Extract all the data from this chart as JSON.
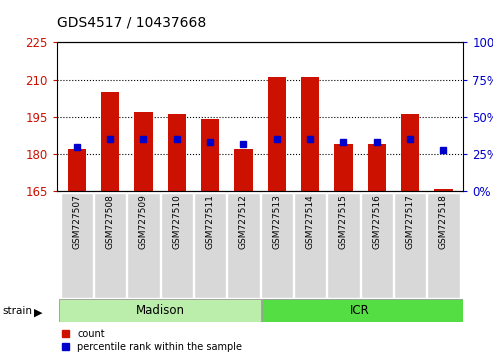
{
  "title": "GDS4517 / 10437668",
  "samples": [
    "GSM727507",
    "GSM727508",
    "GSM727509",
    "GSM727510",
    "GSM727511",
    "GSM727512",
    "GSM727513",
    "GSM727514",
    "GSM727515",
    "GSM727516",
    "GSM727517",
    "GSM727518"
  ],
  "red_tops": [
    182,
    205,
    197,
    196,
    194,
    182,
    211,
    211,
    184,
    184,
    196,
    166
  ],
  "blue_pct": [
    30,
    35,
    35,
    35,
    33,
    32,
    35,
    35,
    33,
    33,
    35,
    28
  ],
  "y_min": 165,
  "y_max": 225,
  "y_ticks_left": [
    165,
    180,
    195,
    210,
    225
  ],
  "y_ticks_right": [
    0,
    25,
    50,
    75,
    100
  ],
  "bar_bottom": 165,
  "bar_color": "#cc1100",
  "blue_color": "#0000cc",
  "madison_color": "#bbeeaa",
  "icr_color": "#55dd44",
  "sample_bg": "#d8d8d8"
}
